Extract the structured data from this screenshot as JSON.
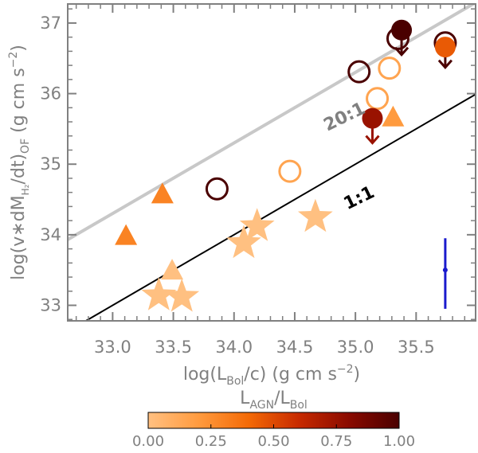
{
  "chart_data": {
    "type": "scatter",
    "xaxis": {
      "label_main": "log(L",
      "label_sub": "Bol",
      "label_tail": "/c) (g cm s",
      "label_sup": "−2",
      "label_close": ")",
      "range": [
        32.63,
        35.99
      ],
      "ticks": [
        33.0,
        33.5,
        34.0,
        34.5,
        35.0,
        35.5
      ],
      "tick_labels": [
        "33.0",
        "33.5",
        "34.0",
        "34.5",
        "35.0",
        "35.5"
      ]
    },
    "yaxis": {
      "label_main": "log(v∗dM",
      "label_sub": "H₂",
      "label_mid": "/dt)",
      "label_sub2": "OF",
      "label_tail": " (g cm s",
      "label_sup": "−2",
      "label_close": ")",
      "range": [
        32.78,
        37.27
      ],
      "ticks": [
        33,
        34,
        35,
        36,
        37
      ],
      "tick_labels": [
        "33",
        "34",
        "35",
        "36",
        "37"
      ]
    },
    "reference_lines": [
      {
        "label": "20:1",
        "offset": 1.301,
        "color": "#c8c8c8",
        "label_color": "#808080",
        "label_at": [
          34.93,
          35.6
        ],
        "label_angle": -26
      },
      {
        "label": "1:1",
        "offset": 0.0,
        "color": "#000000",
        "label_color": "#000000",
        "label_at": [
          35.05,
          34.45
        ],
        "label_angle": -26
      }
    ],
    "points": [
      {
        "marker": "star",
        "x": 33.38,
        "y": 33.14,
        "frac": 0.0,
        "upper_limit": false
      },
      {
        "marker": "star",
        "x": 33.57,
        "y": 33.12,
        "frac": 0.0,
        "upper_limit": false
      },
      {
        "marker": "star",
        "x": 34.08,
        "y": 33.88,
        "frac": 0.0,
        "upper_limit": false
      },
      {
        "marker": "star",
        "x": 34.19,
        "y": 34.12,
        "frac": 0.0,
        "upper_limit": false
      },
      {
        "marker": "star",
        "x": 34.67,
        "y": 34.25,
        "frac": 0.0,
        "upper_limit": false
      },
      {
        "marker": "triangle",
        "x": 33.49,
        "y": 33.49,
        "frac": 0.0,
        "upper_limit": false
      },
      {
        "marker": "triangle",
        "x": 35.31,
        "y": 35.66,
        "frac": 0.2,
        "upper_limit": false
      },
      {
        "marker": "triangle",
        "x": 33.11,
        "y": 33.98,
        "frac": 0.3,
        "upper_limit": false
      },
      {
        "marker": "triangle",
        "x": 33.41,
        "y": 34.57,
        "frac": 0.3,
        "upper_limit": false
      },
      {
        "marker": "open_circle",
        "x": 34.46,
        "y": 34.9,
        "frac": 0.15,
        "upper_limit": false
      },
      {
        "marker": "open_circle",
        "x": 35.18,
        "y": 35.93,
        "frac": 0.15,
        "upper_limit": false
      },
      {
        "marker": "open_circle",
        "x": 35.28,
        "y": 36.36,
        "frac": 0.15,
        "upper_limit": false
      },
      {
        "marker": "open_circle",
        "x": 33.86,
        "y": 34.65,
        "frac": 1.0,
        "upper_limit": false
      },
      {
        "marker": "open_circle",
        "x": 35.03,
        "y": 36.31,
        "frac": 1.0,
        "upper_limit": false
      },
      {
        "marker": "open_circle",
        "x": 35.35,
        "y": 36.78,
        "frac": 1.0,
        "upper_limit": false
      },
      {
        "marker": "open_circle",
        "x": 35.74,
        "y": 36.72,
        "frac": 1.0,
        "upper_limit": true
      },
      {
        "marker": "filled_circle",
        "x": 35.74,
        "y": 36.66,
        "frac": 0.45,
        "upper_limit": false
      },
      {
        "marker": "filled_circle",
        "x": 35.14,
        "y": 35.65,
        "frac": 0.75,
        "upper_limit": true
      },
      {
        "marker": "filled_circle",
        "x": 35.38,
        "y": 36.9,
        "frac": 1.0,
        "upper_limit": true
      }
    ],
    "error_bar": {
      "x": 35.74,
      "y": 33.5,
      "y_low": 32.95,
      "y_high": 33.95,
      "color": "#1a1acd"
    },
    "colorbar": {
      "title_main": "L",
      "title_sub": "AGN",
      "title_mid": "/L",
      "title_sub2": "Bol",
      "range": [
        0.0,
        1.0
      ],
      "ticks": [
        0.0,
        0.25,
        0.5,
        0.75,
        1.0
      ],
      "tick_labels": [
        "0.00",
        "0.25",
        "0.50",
        "0.75",
        "1.00"
      ],
      "colors": [
        "#ffc081",
        "#ff9b3f",
        "#f46a06",
        "#c72a00",
        "#8a0a00",
        "#4a0000"
      ]
    },
    "grid": false,
    "legend": "none"
  }
}
